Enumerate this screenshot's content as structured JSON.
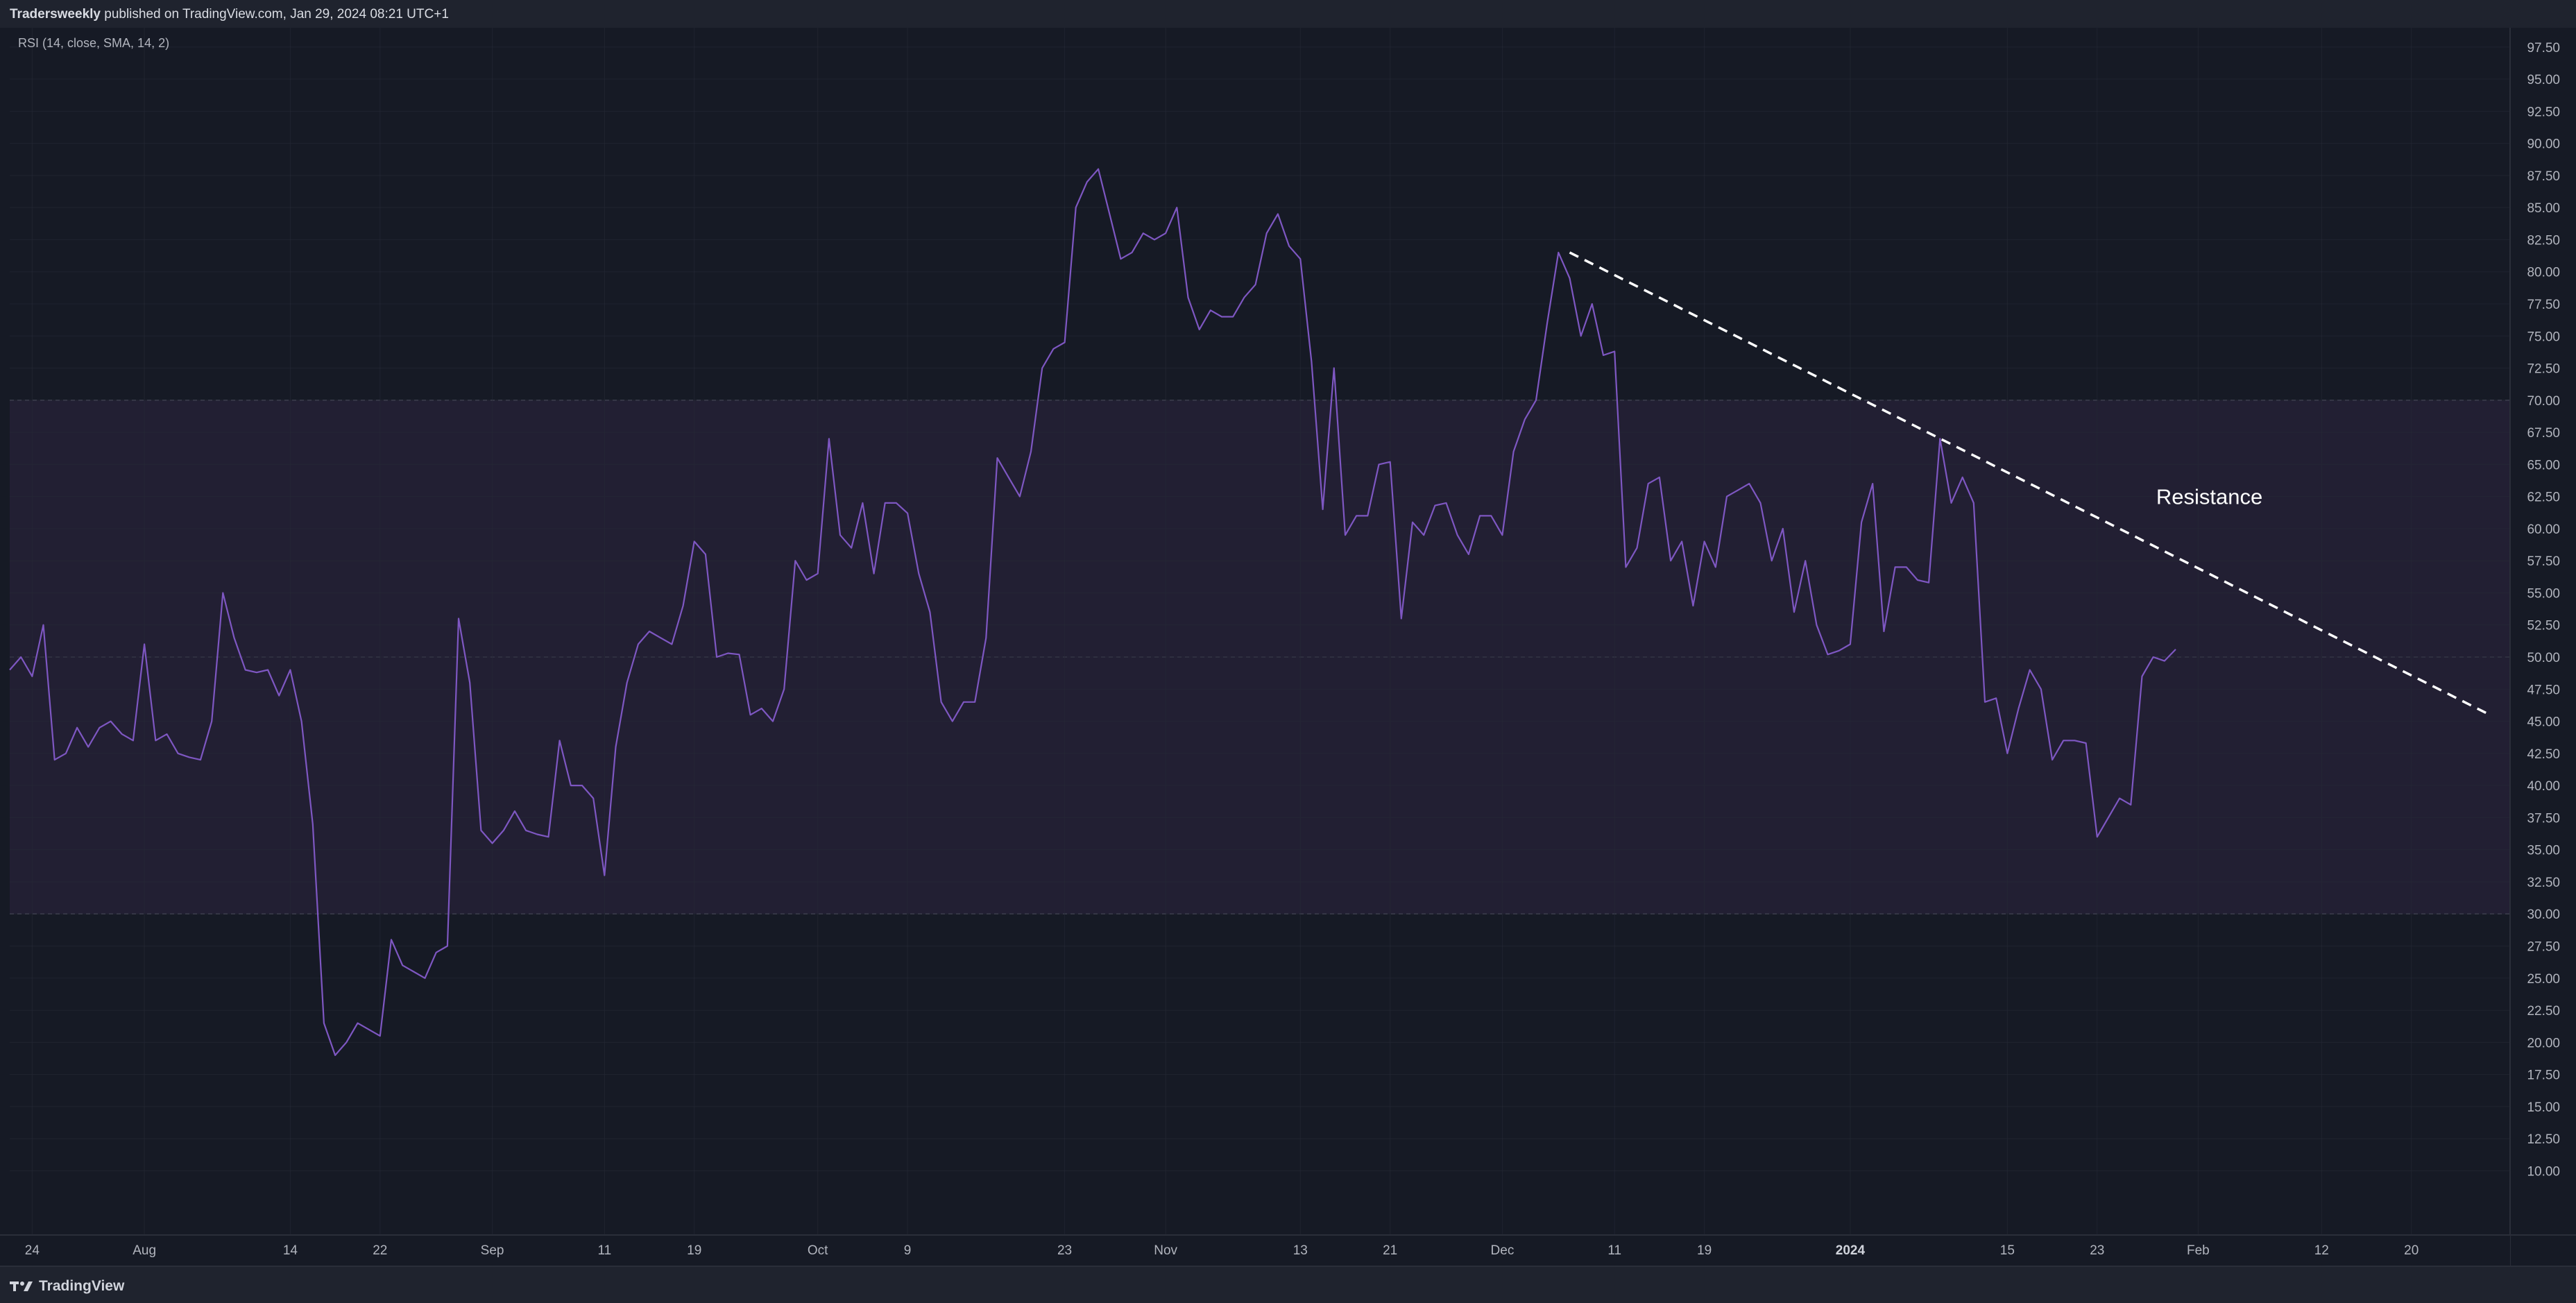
{
  "header": {
    "author": "Tradersweekly",
    "text": " published on TradingView.com, Jan 29, 2024 08:21 UTC+1"
  },
  "footer": {
    "brand": "TradingView",
    "logo_icon": "tradingview-logo-icon"
  },
  "colors": {
    "background": "#161a25",
    "band_fill": "#221f33",
    "rsi_line": "#7e57c2",
    "trendline": "#ffffff",
    "axis_text": "#b2b5be"
  },
  "chart_data": {
    "type": "line",
    "indicator_label": "RSI (14, close, SMA, 14, 2)",
    "ylim": [
      5,
      99
    ],
    "y_ticks": [
      "97.50",
      "95.00",
      "92.50",
      "90.00",
      "87.50",
      "85.00",
      "82.50",
      "80.00",
      "77.50",
      "75.00",
      "72.50",
      "70.00",
      "67.50",
      "65.00",
      "62.50",
      "60.00",
      "57.50",
      "55.00",
      "52.50",
      "50.00",
      "47.50",
      "45.00",
      "42.50",
      "40.00",
      "37.50",
      "35.00",
      "32.50",
      "30.00",
      "27.50",
      "25.00",
      "22.50",
      "20.00",
      "17.50",
      "15.00",
      "12.50",
      "10.00"
    ],
    "x_ticks": [
      {
        "label": "24",
        "i": 2,
        "bold": false
      },
      {
        "label": "Aug",
        "i": 12,
        "bold": false
      },
      {
        "label": "14",
        "i": 25,
        "bold": false
      },
      {
        "label": "22",
        "i": 33,
        "bold": false
      },
      {
        "label": "Sep",
        "i": 43,
        "bold": false
      },
      {
        "label": "11",
        "i": 53,
        "bold": false
      },
      {
        "label": "19",
        "i": 61,
        "bold": false
      },
      {
        "label": "Oct",
        "i": 72,
        "bold": false
      },
      {
        "label": "9",
        "i": 80,
        "bold": false
      },
      {
        "label": "23",
        "i": 94,
        "bold": false
      },
      {
        "label": "Nov",
        "i": 103,
        "bold": false
      },
      {
        "label": "13",
        "i": 115,
        "bold": false
      },
      {
        "label": "21",
        "i": 123,
        "bold": false
      },
      {
        "label": "Dec",
        "i": 133,
        "bold": false
      },
      {
        "label": "11",
        "i": 143,
        "bold": false
      },
      {
        "label": "19",
        "i": 151,
        "bold": false
      },
      {
        "label": "2024",
        "i": 164,
        "bold": true
      },
      {
        "label": "15",
        "i": 178,
        "bold": false
      },
      {
        "label": "23",
        "i": 186,
        "bold": false
      },
      {
        "label": "Feb",
        "i": 195,
        "bold": false
      },
      {
        "label": "12",
        "i": 206,
        "bold": false
      },
      {
        "label": "20",
        "i": 214,
        "bold": false
      }
    ],
    "series": [
      {
        "values": [
          49,
          50,
          48.5,
          52.5,
          42,
          42.5,
          44.5,
          43,
          44.5,
          45,
          44,
          43.5,
          51,
          43.5,
          44,
          42.5,
          42.2,
          42,
          45,
          55,
          51.5,
          49,
          48.8,
          49,
          47,
          49,
          45,
          37,
          21.5,
          19,
          20,
          21.5,
          21,
          20.5,
          28,
          26,
          25.5,
          25,
          27,
          27.5,
          53,
          48,
          36.5,
          35.5,
          36.5,
          38,
          36.5,
          36.2,
          36,
          43.5,
          40,
          40,
          39,
          33,
          43,
          48,
          51,
          52,
          51.5,
          51,
          54,
          59,
          58,
          50,
          50.3,
          50.2,
          45.5,
          46,
          45,
          47.5,
          57.5,
          56,
          56.5,
          67,
          59.5,
          58.5,
          62,
          56.5,
          62,
          62,
          61.2,
          56.5,
          53.5,
          46.5,
          45,
          46.5,
          46.5,
          51.5,
          65.5,
          64,
          62.5,
          66,
          72.5,
          74,
          74.5,
          85,
          87,
          88,
          84.5,
          81,
          81.5,
          83,
          82.5,
          83,
          85,
          78,
          75.5,
          77,
          76.5,
          76.5,
          78,
          79,
          83,
          84.5,
          82,
          81,
          73,
          61.5,
          72.5,
          59.5,
          61,
          61,
          65,
          65.2,
          53,
          60.5,
          59.5,
          61.8,
          62,
          59.5,
          58,
          61,
          61,
          59.5,
          66,
          68.5,
          70,
          76,
          81.5,
          79.5,
          75,
          77.5,
          73.5,
          73.8,
          57,
          58.5,
          63.5,
          64,
          57.5,
          59,
          54,
          59,
          57,
          62.5,
          63,
          63.5,
          62,
          57.5,
          60,
          53.5,
          57.5,
          52.5,
          50.2,
          50.5,
          51,
          60.5,
          63.5,
          52,
          57,
          57,
          56,
          55.8,
          67,
          62,
          64,
          62,
          46.5,
          46.8,
          42.5,
          46,
          49,
          47.5,
          42,
          43.5,
          43.5,
          43.3,
          36,
          37.5,
          39,
          38.5,
          48.5,
          50,
          49.7,
          50.6
        ]
      }
    ],
    "bands": {
      "upper": 70,
      "middle": 50,
      "lower": 30
    },
    "trendline": {
      "from": [
        139,
        81.5
      ],
      "to": [
        221,
        45.5
      ]
    },
    "annotations": [
      {
        "text": "Resistance",
        "at": [
          196,
          62.5
        ]
      }
    ],
    "grid": true
  }
}
